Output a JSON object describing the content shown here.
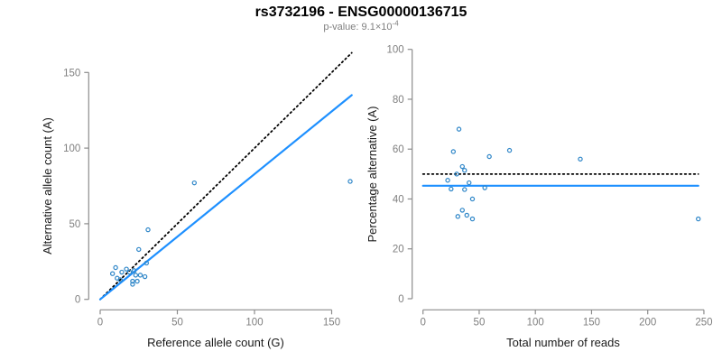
{
  "header": {
    "title": "rs3732196 - ENSG00000136715",
    "p_label": "p-value: ",
    "p_mantissa": "9.1",
    "times_sign": "×",
    "base": "10",
    "p_exponent": "-4"
  },
  "colors": {
    "line_blue": "#1E90FF",
    "point_blue": "#2E86C8",
    "dotted_black": "#000000",
    "axis_gray": "#8c8c8c",
    "tick_text_gray": "#7f7f7f",
    "label_black": "#1a1a1a",
    "subtitle_gray": "#7f7f7f"
  },
  "chart_data": [
    {
      "type": "scatter",
      "name": "allele-counts-scatter",
      "xlabel": "Reference allele count (G)",
      "ylabel": "Alternative allele count (A)",
      "xlim": [
        0,
        165
      ],
      "ylim": [
        0,
        165
      ],
      "xticks": [
        0,
        50,
        100,
        150
      ],
      "yticks": [
        0,
        50,
        100,
        150
      ],
      "grid": false,
      "legend": false,
      "points": [
        [
          8,
          17
        ],
        [
          10,
          21
        ],
        [
          11,
          14
        ],
        [
          13,
          13
        ],
        [
          14,
          18
        ],
        [
          17,
          20
        ],
        [
          19,
          18
        ],
        [
          22,
          19
        ],
        [
          21,
          12
        ],
        [
          21,
          10
        ],
        [
          23,
          16
        ],
        [
          24,
          12
        ],
        [
          26,
          16
        ],
        [
          29,
          15
        ],
        [
          25,
          33
        ],
        [
          30,
          24
        ],
        [
          31,
          46
        ],
        [
          61,
          77
        ],
        [
          162,
          78
        ]
      ],
      "lines": [
        {
          "name": "identity-line",
          "style": "dotted",
          "color_key": "dotted_black",
          "from": [
            0,
            0
          ],
          "to": [
            163,
            163
          ]
        },
        {
          "name": "regression-line",
          "style": "solid",
          "color_key": "line_blue",
          "from": [
            0,
            0
          ],
          "to": [
            163,
            135
          ]
        }
      ]
    },
    {
      "type": "scatter",
      "name": "percentage-vs-reads-scatter",
      "xlabel": "Total number of reads",
      "ylabel": "Percentage alternative (A)",
      "xlim": [
        0,
        250
      ],
      "ylim": [
        0,
        100
      ],
      "xticks": [
        0,
        50,
        100,
        150,
        200,
        250
      ],
      "yticks": [
        0,
        20,
        40,
        60,
        80,
        100
      ],
      "grid": false,
      "legend": false,
      "points": [
        [
          32,
          68
        ],
        [
          27,
          59
        ],
        [
          59,
          57
        ],
        [
          77,
          59.5
        ],
        [
          140,
          56
        ],
        [
          35,
          53
        ],
        [
          37,
          51.5
        ],
        [
          30,
          50
        ],
        [
          22,
          47.5
        ],
        [
          41,
          46.5
        ],
        [
          25,
          44
        ],
        [
          37,
          43.8
        ],
        [
          55,
          44.5
        ],
        [
          44,
          40
        ],
        [
          35,
          35.5
        ],
        [
          31,
          33
        ],
        [
          39,
          33.5
        ],
        [
          44,
          32
        ],
        [
          245,
          32
        ]
      ],
      "lines": [
        {
          "name": "expected-50-line",
          "style": "dotted",
          "color_key": "dotted_black",
          "from": [
            0,
            50
          ],
          "to": [
            245,
            50
          ]
        },
        {
          "name": "mean-percentage-line",
          "style": "solid",
          "color_key": "line_blue",
          "from": [
            0,
            45.3
          ],
          "to": [
            245,
            45.3
          ]
        }
      ]
    }
  ]
}
